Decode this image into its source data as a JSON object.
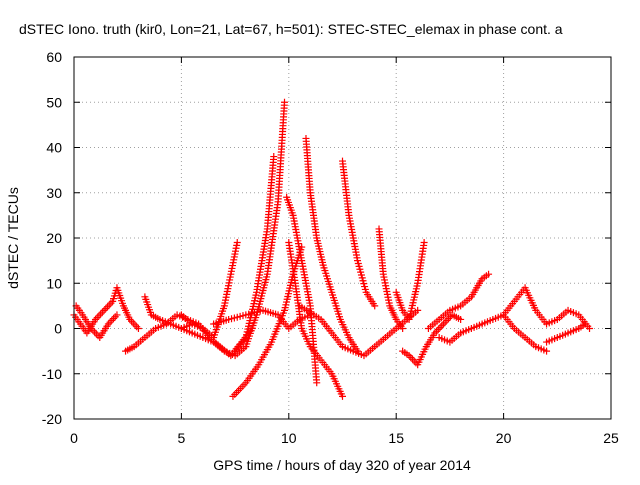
{
  "chart_data": {
    "type": "scatter",
    "title": "dSTEC Iono. truth (kir0, Lon=21, Lat=67, h=501): STEC-STEC_elemax in phase cont. a",
    "xlabel": "GPS time / hours of day 320 of year 2014",
    "ylabel": "dSTEC  / TECUs",
    "xlim": [
      0,
      25
    ],
    "ylim": [
      -20,
      60
    ],
    "x_ticks": [
      "0",
      "5",
      "10",
      "15",
      "20",
      "25"
    ],
    "y_ticks": [
      "-20",
      "-10",
      "0",
      "10",
      "20",
      "30",
      "40",
      "50",
      "60"
    ],
    "grid": true,
    "marker": "+",
    "color": "#ff0000",
    "series": [
      {
        "x": [
          0.0,
          0.3,
          0.6,
          1.0,
          1.4,
          1.8,
          2.0,
          2.3,
          2.6,
          3.0
        ],
        "y": [
          3,
          1,
          -1,
          2,
          4,
          6,
          9,
          5,
          2,
          0
        ]
      },
      {
        "x": [
          0.1,
          0.4,
          0.8,
          1.2,
          1.6,
          2.0
        ],
        "y": [
          5,
          3,
          0,
          -2,
          1,
          3
        ]
      },
      {
        "x": [
          2.4,
          2.8,
          3.3,
          3.8,
          4.3,
          4.8,
          5.3,
          5.8,
          6.3,
          6.8,
          7.3,
          7.8,
          8.3
        ],
        "y": [
          -5,
          -4,
          -2,
          0,
          1,
          3,
          2,
          1,
          -2,
          -4,
          -6,
          -3,
          0
        ]
      },
      {
        "x": [
          3.3,
          3.6,
          4.0,
          4.5,
          5.0,
          5.5
        ],
        "y": [
          7,
          3,
          2,
          1,
          0,
          1
        ]
      },
      {
        "x": [
          5.0,
          5.5,
          6.0,
          6.5,
          7.0,
          7.3,
          7.6
        ],
        "y": [
          3,
          1,
          0,
          -2,
          5,
          12,
          19
        ]
      },
      {
        "x": [
          5.0,
          5.5,
          6.0,
          6.5,
          7.0,
          7.5,
          8.0,
          8.5,
          9.0,
          9.5,
          9.8
        ],
        "y": [
          0,
          -1,
          -2,
          -3,
          -5,
          -6,
          -4,
          3,
          12,
          28,
          50
        ]
      },
      {
        "x": [
          7.5,
          8.0,
          8.5,
          9.0,
          9.3
        ],
        "y": [
          -5,
          -2,
          8,
          22,
          38
        ]
      },
      {
        "x": [
          6.5,
          7.2,
          8.0,
          8.8,
          9.5,
          10.0,
          10.5,
          11.0
        ],
        "y": [
          1,
          2,
          3,
          4,
          3,
          0,
          2,
          3
        ]
      },
      {
        "x": [
          7.4,
          8.0,
          8.6,
          9.2,
          9.8,
          10.2,
          10.6
        ],
        "y": [
          -15,
          -12,
          -8,
          -3,
          4,
          12,
          18
        ]
      },
      {
        "x": [
          9.9,
          10.2,
          10.6,
          11.0,
          11.3
        ],
        "y": [
          29,
          25,
          15,
          5,
          -12
        ]
      },
      {
        "x": [
          10.0,
          10.3,
          10.6,
          11.0,
          11.5,
          12.0,
          12.5
        ],
        "y": [
          19,
          10,
          0,
          -4,
          -7,
          -10,
          -15
        ]
      },
      {
        "x": [
          10.8,
          11.0,
          11.3,
          11.6,
          12.0,
          12.4,
          12.8,
          13.2
        ],
        "y": [
          42,
          30,
          20,
          14,
          8,
          2,
          -2,
          -5
        ]
      },
      {
        "x": [
          12.5,
          12.8,
          13.2,
          13.6,
          14.0
        ],
        "y": [
          37,
          25,
          15,
          8,
          5
        ]
      },
      {
        "x": [
          10.5,
          11.5,
          12.5,
          13.0,
          13.5,
          14.0,
          14.5,
          15.0,
          15.5,
          16.0
        ],
        "y": [
          5,
          2,
          -4,
          -5,
          -6,
          -4,
          -2,
          0,
          2,
          4
        ]
      },
      {
        "x": [
          14.2,
          14.4,
          14.7,
          15.0,
          15.3
        ],
        "y": [
          22,
          12,
          5,
          2,
          0
        ]
      },
      {
        "x": [
          15.0,
          15.3,
          15.6,
          16.0,
          16.3
        ],
        "y": [
          8,
          4,
          2,
          10,
          19
        ]
      },
      {
        "x": [
          15.3,
          15.6,
          16.0,
          16.4,
          16.8,
          17.2,
          17.6,
          18.0
        ],
        "y": [
          -5,
          -6,
          -8,
          -4,
          -1,
          1,
          3,
          2
        ]
      },
      {
        "x": [
          16.5,
          17.0,
          17.5,
          18.0,
          18.5,
          19.0,
          19.3
        ],
        "y": [
          0,
          2,
          4,
          5,
          7,
          11,
          12
        ]
      },
      {
        "x": [
          17.0,
          17.5,
          18.0,
          18.5,
          19.0,
          19.5,
          20.0,
          20.5,
          21.0,
          21.5,
          22.0
        ],
        "y": [
          -2,
          -3,
          -1,
          0,
          1,
          2,
          3,
          0,
          -2,
          -4,
          -5
        ]
      },
      {
        "x": [
          20.0,
          20.5,
          21.0,
          21.5,
          22.0,
          22.5,
          23.0,
          23.5,
          24.0
        ],
        "y": [
          3,
          6,
          9,
          4,
          1,
          2,
          4,
          3,
          0
        ]
      },
      {
        "x": [
          22.0,
          22.5,
          23.0,
          23.5,
          23.8
        ],
        "y": [
          -3,
          -2,
          -1,
          0,
          1
        ]
      }
    ]
  }
}
